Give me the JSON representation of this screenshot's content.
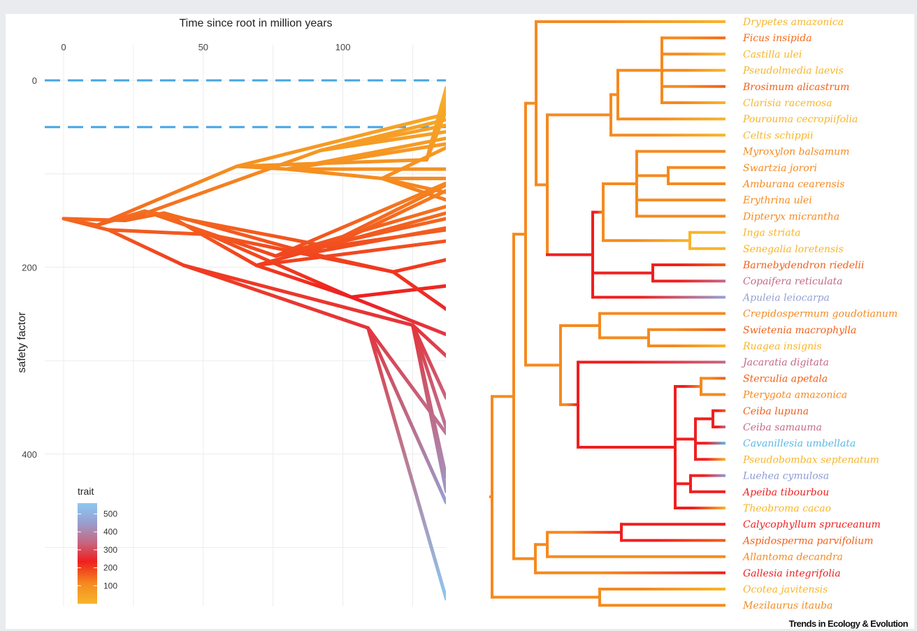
{
  "chart_data": [
    {
      "type": "line",
      "subtype": "phenogram",
      "xlabel": "Time since root in million years",
      "ylabel": "safety factor",
      "x_ticks": [
        0,
        50,
        100
      ],
      "y_ticks": [
        0,
        200,
        400
      ],
      "xlim": [
        -7,
        137
      ],
      "ylim": [
        -30,
        555
      ],
      "x_axis_position": "top",
      "y_axis_reversed": true,
      "grid": true,
      "reference_lines": [
        0,
        50
      ],
      "reference_line_color": "#45a5e4",
      "root": {
        "time": 0,
        "value": 148
      },
      "internal_nodes": [
        {
          "id": "a",
          "time": 12,
          "value": 155
        },
        {
          "id": "b",
          "time": 16,
          "value": 160
        },
        {
          "id": "c",
          "time": 22,
          "value": 150
        },
        {
          "id": "d",
          "time": 29,
          "value": 140
        },
        {
          "id": "e",
          "time": 36,
          "value": 142
        },
        {
          "id": "f",
          "time": 43,
          "value": 198
        },
        {
          "id": "g",
          "time": 52,
          "value": 165
        },
        {
          "id": "h",
          "time": 62,
          "value": 92
        },
        {
          "id": "i",
          "time": 69,
          "value": 198
        },
        {
          "id": "j",
          "time": 76,
          "value": 188
        },
        {
          "id": "k",
          "time": 80,
          "value": 95
        },
        {
          "id": "l",
          "time": 88,
          "value": 185
        },
        {
          "id": "m",
          "time": 92,
          "value": 75
        },
        {
          "id": "n",
          "time": 95,
          "value": 178
        },
        {
          "id": "o",
          "time": 103,
          "value": 232
        },
        {
          "id": "p",
          "time": 109,
          "value": 265
        },
        {
          "id": "q",
          "time": 114,
          "value": 105
        },
        {
          "id": "r",
          "time": 118,
          "value": 205
        },
        {
          "id": "s",
          "time": 125,
          "value": 262
        },
        {
          "id": "t",
          "time": 130,
          "value": 85
        }
      ],
      "tip_values": [
        {
          "label": "Drypetes amazonica",
          "value": 8
        },
        {
          "label": "Ficus insipida",
          "value": 148
        },
        {
          "label": "Castilla ulei",
          "value": 32
        },
        {
          "label": "Pseudolmedia laevis",
          "value": 42
        },
        {
          "label": "Brosimum alicastrum",
          "value": 128
        },
        {
          "label": "Clarisia racemosa",
          "value": 68
        },
        {
          "label": "Pourouma cecropiifolia",
          "value": 55
        },
        {
          "label": "Celtis schippii",
          "value": 26
        },
        {
          "label": "Myroxylon balsamum",
          "value": 120
        },
        {
          "label": "Swartzia jorori",
          "value": 112
        },
        {
          "label": "Amburana cearensis",
          "value": 118
        },
        {
          "label": "Erythrina ulei",
          "value": 135
        },
        {
          "label": "Dipteryx micrantha",
          "value": 160
        },
        {
          "label": "Inga striata",
          "value": 18
        },
        {
          "label": "Senegalia loretensis",
          "value": 48
        },
        {
          "label": "Barnebydendron riedelii",
          "value": 192
        },
        {
          "label": "Copaifera reticulata",
          "value": 372
        },
        {
          "label": "Apuleia leiocarpa",
          "value": 452
        },
        {
          "label": "Crepidospermum goudotianum",
          "value": 95
        },
        {
          "label": "Swietenia macrophylla",
          "value": 158
        },
        {
          "label": "Ruagea insignis",
          "value": 36
        },
        {
          "label": "Jacaratia digitata",
          "value": 425
        },
        {
          "label": "Sterculia apetala",
          "value": 220
        },
        {
          "label": "Pterygota amazonica",
          "value": 142
        },
        {
          "label": "Ceiba lupuna",
          "value": 295
        },
        {
          "label": "Ceiba samauma",
          "value": 378
        },
        {
          "label": "Cavanillesia umbellata",
          "value": 555
        },
        {
          "label": "Pseudobombax septenatum",
          "value": 72
        },
        {
          "label": "Luehea cymulosa",
          "value": 440
        },
        {
          "label": "Apeiba tibourbou",
          "value": 272
        },
        {
          "label": "Theobroma cacao",
          "value": 62
        },
        {
          "label": "Calycophyllum spruceanum",
          "value": 245
        },
        {
          "label": "Aspidosperma parvifolium",
          "value": 172
        },
        {
          "label": "Allantoma decandra",
          "value": 110
        },
        {
          "label": "Gallesia integrifolia",
          "value": 340
        },
        {
          "label": "Ocotea javitensis",
          "value": 30
        },
        {
          "label": "Mezilaurus itauba",
          "value": 105
        }
      ]
    },
    {
      "type": "phylogenetic-tree",
      "orientation": "left-to-right",
      "tips": [
        {
          "label": "Drypetes amazonica",
          "color": "#f7b52b"
        },
        {
          "label": "Ficus insipida",
          "color": "#f56a18"
        },
        {
          "label": "Castilla ulei",
          "color": "#f7b52b"
        },
        {
          "label": "Pseudolmedia laevis",
          "color": "#f7b52b"
        },
        {
          "label": "Brosimum alicastrum",
          "color": "#f06018"
        },
        {
          "label": "Clarisia racemosa",
          "color": "#f7b52b"
        },
        {
          "label": "Pourouma cecropiifolia",
          "color": "#f7b52b"
        },
        {
          "label": "Celtis schippii",
          "color": "#f7b52b"
        },
        {
          "label": "Myroxylon balsamum",
          "color": "#f58a1f"
        },
        {
          "label": "Swartzia jorori",
          "color": "#f58a1f"
        },
        {
          "label": "Amburana cearensis",
          "color": "#f58a1f"
        },
        {
          "label": "Erythrina ulei",
          "color": "#f58a1f"
        },
        {
          "label": "Dipteryx micrantha",
          "color": "#f58a1f"
        },
        {
          "label": "Inga striata",
          "color": "#f7b52b"
        },
        {
          "label": "Senegalia loretensis",
          "color": "#f7b52b"
        },
        {
          "label": "Barnebydendron riedelii",
          "color": "#f06018"
        },
        {
          "label": "Copaifera reticulata",
          "color": "#c46a86"
        },
        {
          "label": "Apuleia leiocarpa",
          "color": "#96a2d4"
        },
        {
          "label": "Crepidospermum goudotianum",
          "color": "#f58a1f"
        },
        {
          "label": "Swietenia macrophylla",
          "color": "#f06018"
        },
        {
          "label": "Ruagea insignis",
          "color": "#f7b52b"
        },
        {
          "label": "Jacaratia digitata",
          "color": "#c46a86"
        },
        {
          "label": "Sterculia apetala",
          "color": "#f06018"
        },
        {
          "label": "Pterygota amazonica",
          "color": "#f58a1f"
        },
        {
          "label": "Ceiba lupuna",
          "color": "#f06018"
        },
        {
          "label": "Ceiba samauma",
          "color": "#c46a86"
        },
        {
          "label": "Cavanillesia umbellata",
          "color": "#5ab8e6"
        },
        {
          "label": "Pseudobombax septenatum",
          "color": "#f7b52b"
        },
        {
          "label": "Luehea cymulosa",
          "color": "#8e9ad4"
        },
        {
          "label": "Apeiba tibourbou",
          "color": "#ef1f1f"
        },
        {
          "label": "Theobroma cacao",
          "color": "#f7b52b"
        },
        {
          "label": "Calycophyllum spruceanum",
          "color": "#ef1f1f"
        },
        {
          "label": "Aspidosperma parvifolium",
          "color": "#f06018"
        },
        {
          "label": "Allantoma decandra",
          "color": "#f58a1f"
        },
        {
          "label": "Gallesia integrifolia",
          "color": "#ef1f1f"
        },
        {
          "label": "Ocotea javitensis",
          "color": "#f7b52b"
        },
        {
          "label": "Mezilaurus itauba",
          "color": "#f58a1f"
        }
      ]
    }
  ],
  "legend": {
    "title": "trait",
    "ticks": [
      "500",
      "400",
      "300",
      "200",
      "100"
    ],
    "range": [
      0,
      560
    ],
    "colors": [
      "#f7b52b",
      "#f58a1f",
      "#ef1f1f",
      "#c46a86",
      "#96a2d4",
      "#8cc8f2"
    ]
  },
  "credit": "Trends in Ecology & Evolution"
}
